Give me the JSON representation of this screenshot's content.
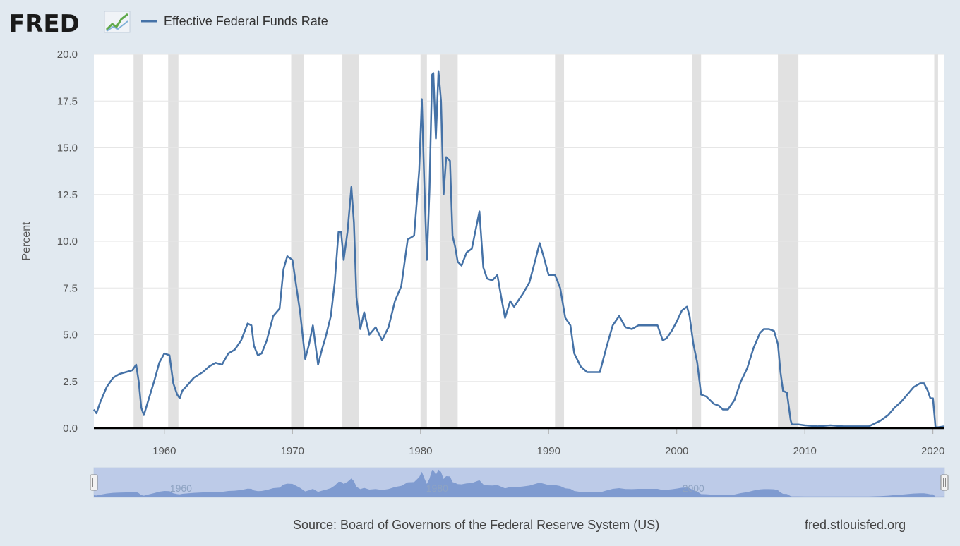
{
  "header": {
    "logo_text": "FRED",
    "legend_label": "Effective Federal Funds Rate"
  },
  "footer": {
    "source": "Source: Board of Governors of the Federal Reserve System (US)",
    "site": "fred.stlouisfed.org"
  },
  "navigator": {
    "labels": [
      "1960",
      "1980",
      "2000"
    ]
  },
  "colors": {
    "line": "#4572a7",
    "background": "#e1e9f0",
    "plot": "#ffffff",
    "recession": "#e1e1e1",
    "navigator_fill": "#a9bbdf"
  },
  "chart_data": {
    "type": "line",
    "title": "",
    "xlabel": "",
    "ylabel": "Percent",
    "xlim": [
      1954.5,
      2020.9
    ],
    "ylim": [
      0,
      20
    ],
    "x_ticks": [
      "1960",
      "1970",
      "1980",
      "1990",
      "2000",
      "2010",
      "2020"
    ],
    "y_ticks": [
      "0.0",
      "2.5",
      "5.0",
      "7.5",
      "10.0",
      "12.5",
      "15.0",
      "17.5",
      "20.0"
    ],
    "grid": true,
    "legend_position": "top-left",
    "recessions": [
      [
        1957.6,
        1958.3
      ],
      [
        1960.3,
        1961.1
      ],
      [
        1969.9,
        1970.9
      ],
      [
        1973.9,
        1975.2
      ],
      [
        1980.0,
        1980.5
      ],
      [
        1981.5,
        1982.9
      ],
      [
        1990.5,
        1991.2
      ],
      [
        2001.2,
        2001.9
      ],
      [
        2007.9,
        2009.5
      ],
      [
        2020.1,
        2020.4
      ]
    ],
    "series": [
      {
        "name": "Effective Federal Funds Rate",
        "x": [
          1954.5,
          1954.7,
          1955.0,
          1955.5,
          1956.0,
          1956.5,
          1957.0,
          1957.5,
          1957.8,
          1958.0,
          1958.2,
          1958.4,
          1958.8,
          1959.2,
          1959.6,
          1960.0,
          1960.4,
          1960.7,
          1961.0,
          1961.2,
          1961.4,
          1961.8,
          1962.3,
          1963.0,
          1963.5,
          1964.0,
          1964.5,
          1965.0,
          1965.5,
          1966.0,
          1966.5,
          1966.8,
          1967.0,
          1967.3,
          1967.6,
          1968.0,
          1968.5,
          1969.0,
          1969.3,
          1969.6,
          1970.0,
          1970.3,
          1970.6,
          1971.0,
          1971.3,
          1971.6,
          1972.0,
          1972.3,
          1972.6,
          1973.0,
          1973.3,
          1973.6,
          1973.8,
          1974.0,
          1974.3,
          1974.6,
          1974.8,
          1975.0,
          1975.3,
          1975.6,
          1976.0,
          1976.5,
          1977.0,
          1977.5,
          1978.0,
          1978.5,
          1979.0,
          1979.5,
          1979.9,
          1980.1,
          1980.3,
          1980.5,
          1980.7,
          1980.9,
          1981.0,
          1981.2,
          1981.4,
          1981.6,
          1981.8,
          1982.0,
          1982.3,
          1982.5,
          1982.7,
          1982.9,
          1983.2,
          1983.6,
          1984.0,
          1984.3,
          1984.6,
          1984.9,
          1985.2,
          1985.6,
          1986.0,
          1986.3,
          1986.6,
          1987.0,
          1987.3,
          1987.6,
          1988.0,
          1988.5,
          1989.0,
          1989.3,
          1989.6,
          1990.0,
          1990.5,
          1990.9,
          1991.3,
          1991.7,
          1992.0,
          1992.5,
          1993.0,
          1993.5,
          1994.0,
          1994.5,
          1995.0,
          1995.5,
          1996.0,
          1996.5,
          1997.0,
          1997.5,
          1998.0,
          1998.5,
          1998.9,
          1999.2,
          1999.6,
          2000.0,
          2000.4,
          2000.8,
          2001.0,
          2001.3,
          2001.6,
          2001.9,
          2002.3,
          2002.9,
          2003.3,
          2003.6,
          2004.0,
          2004.5,
          2005.0,
          2005.5,
          2006.0,
          2006.5,
          2006.8,
          2007.2,
          2007.6,
          2007.9,
          2008.1,
          2008.3,
          2008.6,
          2008.9,
          2009.0,
          2009.5,
          2010.0,
          2011.0,
          2012.0,
          2013.0,
          2014.0,
          2015.0,
          2015.9,
          2016.5,
          2017.0,
          2017.5,
          2018.0,
          2018.5,
          2019.0,
          2019.3,
          2019.6,
          2019.8,
          2020.0,
          2020.2,
          2020.4,
          2020.9
        ],
        "values": [
          1.0,
          0.8,
          1.4,
          2.2,
          2.7,
          2.9,
          3.0,
          3.1,
          3.4,
          2.5,
          1.1,
          0.7,
          1.6,
          2.5,
          3.5,
          4.0,
          3.9,
          2.4,
          1.8,
          1.6,
          2.0,
          2.3,
          2.7,
          3.0,
          3.3,
          3.5,
          3.4,
          4.0,
          4.2,
          4.7,
          5.6,
          5.5,
          4.4,
          3.9,
          4.0,
          4.7,
          6.0,
          6.4,
          8.5,
          9.2,
          9.0,
          7.6,
          6.2,
          3.7,
          4.5,
          5.5,
          3.4,
          4.2,
          4.9,
          6.0,
          7.8,
          10.5,
          10.5,
          9.0,
          10.5,
          12.9,
          11.0,
          7.0,
          5.3,
          6.2,
          5.0,
          5.4,
          4.7,
          5.4,
          6.8,
          7.6,
          10.1,
          10.3,
          13.8,
          17.6,
          13.0,
          9.0,
          12.8,
          18.9,
          19.0,
          15.5,
          19.1,
          17.5,
          12.5,
          14.5,
          14.3,
          10.3,
          9.7,
          8.9,
          8.7,
          9.4,
          9.6,
          10.6,
          11.6,
          8.6,
          8.0,
          7.9,
          8.2,
          7.0,
          5.9,
          6.8,
          6.5,
          6.8,
          7.2,
          7.8,
          9.1,
          9.9,
          9.2,
          8.2,
          8.2,
          7.5,
          5.9,
          5.5,
          4.0,
          3.3,
          3.0,
          3.0,
          3.0,
          4.3,
          5.5,
          6.0,
          5.4,
          5.3,
          5.5,
          5.5,
          5.5,
          5.5,
          4.7,
          4.8,
          5.2,
          5.7,
          6.3,
          6.5,
          6.0,
          4.5,
          3.5,
          1.8,
          1.7,
          1.3,
          1.2,
          1.0,
          1.0,
          1.5,
          2.5,
          3.2,
          4.3,
          5.1,
          5.3,
          5.3,
          5.2,
          4.5,
          3.0,
          2.0,
          1.9,
          0.4,
          0.2,
          0.2,
          0.15,
          0.1,
          0.15,
          0.1,
          0.1,
          0.1,
          0.4,
          0.7,
          1.1,
          1.4,
          1.8,
          2.2,
          2.4,
          2.4,
          2.0,
          1.6,
          1.6,
          0.05,
          0.05,
          0.1
        ]
      }
    ]
  }
}
